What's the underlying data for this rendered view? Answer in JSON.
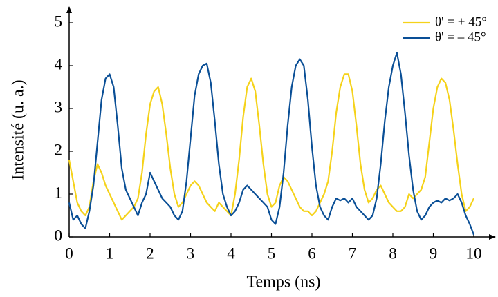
{
  "chart_data": {
    "type": "line",
    "xlabel": "Temps (ns)",
    "ylabel": "Intensité (u. a.)",
    "x": [
      0,
      0.1,
      0.2,
      0.3,
      0.4,
      0.5,
      0.6,
      0.7,
      0.8,
      0.9,
      1,
      1.1,
      1.2,
      1.3,
      1.4,
      1.5,
      1.6,
      1.7,
      1.8,
      1.9,
      2,
      2.1,
      2.2,
      2.3,
      2.4,
      2.5,
      2.6,
      2.7,
      2.8,
      2.9,
      3,
      3.1,
      3.2,
      3.3,
      3.4,
      3.5,
      3.6,
      3.7,
      3.8,
      3.9,
      4,
      4.1,
      4.2,
      4.3,
      4.4,
      4.5,
      4.6,
      4.7,
      4.8,
      4.9,
      5,
      5.1,
      5.2,
      5.3,
      5.4,
      5.5,
      5.6,
      5.7,
      5.8,
      5.9,
      6,
      6.1,
      6.2,
      6.3,
      6.4,
      6.5,
      6.6,
      6.7,
      6.8,
      6.9,
      7,
      7.1,
      7.2,
      7.3,
      7.4,
      7.5,
      7.6,
      7.7,
      7.8,
      7.9,
      8,
      8.1,
      8.2,
      8.3,
      8.4,
      8.5,
      8.6,
      8.7,
      8.8,
      8.9,
      9,
      9.1,
      9.2,
      9.3,
      9.4,
      9.5,
      9.6,
      9.7,
      9.8,
      9.9,
      10
    ],
    "series": [
      {
        "name": "θ' = + 45°",
        "color": "#f5d21a",
        "values": [
          1.8,
          1.3,
          0.8,
          0.6,
          0.5,
          0.7,
          1.3,
          1.7,
          1.5,
          1.2,
          1.0,
          0.8,
          0.6,
          0.4,
          0.5,
          0.6,
          0.7,
          0.9,
          1.5,
          2.4,
          3.1,
          3.4,
          3.5,
          3.1,
          2.4,
          1.6,
          1.0,
          0.7,
          0.8,
          1.0,
          1.2,
          1.3,
          1.2,
          1.0,
          0.8,
          0.7,
          0.6,
          0.8,
          0.7,
          0.6,
          0.5,
          1.0,
          1.8,
          2.8,
          3.5,
          3.7,
          3.4,
          2.6,
          1.7,
          1.0,
          0.7,
          0.8,
          1.2,
          1.4,
          1.3,
          1.1,
          0.9,
          0.7,
          0.6,
          0.6,
          0.5,
          0.6,
          0.8,
          1.0,
          1.3,
          2.0,
          2.9,
          3.5,
          3.8,
          3.8,
          3.4,
          2.6,
          1.7,
          1.1,
          0.8,
          0.9,
          1.1,
          1.2,
          1.0,
          0.8,
          0.7,
          0.6,
          0.6,
          0.7,
          1.0,
          0.9,
          1.0,
          1.1,
          1.4,
          2.2,
          3.0,
          3.5,
          3.7,
          3.6,
          3.2,
          2.5,
          1.7,
          1.0,
          0.6,
          0.7,
          0.9
        ]
      },
      {
        "name": "θ' = – 45°",
        "color": "#0a4f96",
        "values": [
          0.8,
          0.4,
          0.5,
          0.3,
          0.2,
          0.6,
          1.2,
          2.2,
          3.2,
          3.7,
          3.8,
          3.5,
          2.6,
          1.6,
          1.1,
          0.9,
          0.7,
          0.5,
          0.8,
          1.0,
          1.5,
          1.3,
          1.1,
          0.9,
          0.8,
          0.7,
          0.5,
          0.4,
          0.6,
          1.3,
          2.3,
          3.3,
          3.8,
          4.0,
          4.05,
          3.6,
          2.7,
          1.7,
          1.0,
          0.7,
          0.5,
          0.6,
          0.8,
          1.1,
          1.2,
          1.1,
          1.0,
          0.9,
          0.8,
          0.7,
          0.4,
          0.3,
          0.7,
          1.5,
          2.6,
          3.5,
          4.0,
          4.15,
          4.0,
          3.2,
          2.1,
          1.2,
          0.7,
          0.5,
          0.4,
          0.7,
          0.9,
          0.85,
          0.9,
          0.8,
          0.9,
          0.7,
          0.6,
          0.5,
          0.4,
          0.5,
          0.9,
          1.7,
          2.7,
          3.5,
          4.0,
          4.3,
          3.8,
          2.9,
          1.9,
          1.1,
          0.6,
          0.4,
          0.5,
          0.7,
          0.8,
          0.85,
          0.8,
          0.9,
          0.85,
          0.9,
          1.0,
          0.8,
          0.5,
          0.3,
          0.05
        ]
      }
    ],
    "xlim": [
      0,
      10
    ],
    "ylim": [
      0,
      5
    ],
    "xticks": [
      0,
      1,
      2,
      3,
      4,
      5,
      6,
      7,
      8,
      9,
      10
    ],
    "yticks": [
      0,
      1,
      2,
      3,
      4,
      5
    ],
    "legend": "upper right"
  }
}
